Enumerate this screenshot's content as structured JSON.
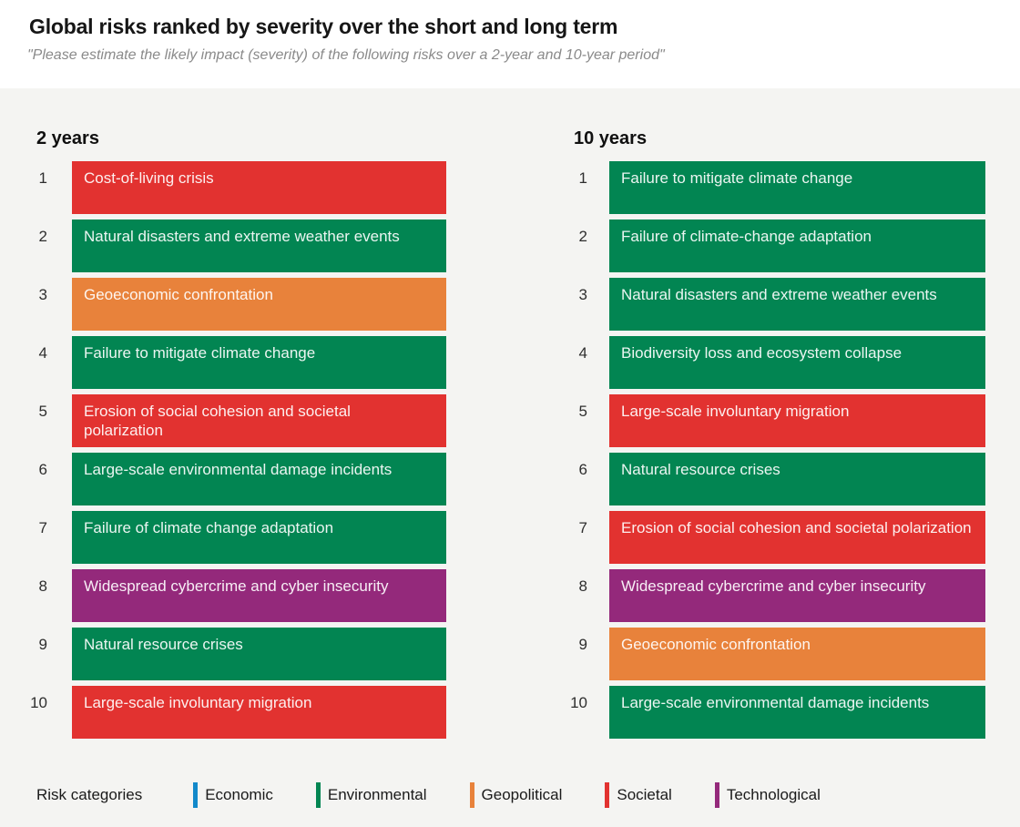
{
  "header": {
    "title": "Global risks ranked by severity over the short and long term",
    "subtitle": "\"Please estimate the likely impact (severity) of the following risks over a 2-year and 10-year period\""
  },
  "categories": {
    "economic": "#1289CA",
    "environmental": "#028552",
    "geopolitical": "#E8823B",
    "societal": "#E23230",
    "technological": "#94297B"
  },
  "columns": [
    {
      "label": "2 years",
      "items": [
        {
          "rank": "1",
          "label": "Cost-of-living crisis",
          "category": "societal"
        },
        {
          "rank": "2",
          "label": "Natural disasters and extreme weather events",
          "category": "environmental"
        },
        {
          "rank": "3",
          "label": "Geoeconomic confrontation",
          "category": "geopolitical"
        },
        {
          "rank": "4",
          "label": "Failure to mitigate climate change",
          "category": "environmental"
        },
        {
          "rank": "5",
          "label": "Erosion of social cohesion and societal polarization",
          "category": "societal"
        },
        {
          "rank": "6",
          "label": "Large-scale environmental damage incidents",
          "category": "environmental"
        },
        {
          "rank": "7",
          "label": "Failure of climate change adaptation",
          "category": "environmental"
        },
        {
          "rank": "8",
          "label": "Widespread cybercrime and cyber insecurity",
          "category": "technological"
        },
        {
          "rank": "9",
          "label": "Natural resource crises",
          "category": "environmental"
        },
        {
          "rank": "10",
          "label": "Large-scale involuntary migration",
          "category": "societal"
        }
      ]
    },
    {
      "label": "10 years",
      "items": [
        {
          "rank": "1",
          "label": "Failure to mitigate climate change",
          "category": "environmental"
        },
        {
          "rank": "2",
          "label": "Failure of climate-change adaptation",
          "category": "environmental"
        },
        {
          "rank": "3",
          "label": "Natural disasters and extreme weather events",
          "category": "environmental"
        },
        {
          "rank": "4",
          "label": "Biodiversity loss and ecosystem collapse",
          "category": "environmental"
        },
        {
          "rank": "5",
          "label": "Large-scale involuntary migration",
          "category": "societal"
        },
        {
          "rank": "6",
          "label": "Natural resource crises",
          "category": "environmental"
        },
        {
          "rank": "7",
          "label": "Erosion of social cohesion and societal polarization",
          "category": "societal"
        },
        {
          "rank": "8",
          "label": "Widespread cybercrime and cyber insecurity",
          "category": "technological"
        },
        {
          "rank": "9",
          "label": "Geoeconomic confrontation",
          "category": "geopolitical"
        },
        {
          "rank": "10",
          "label": "Large-scale environmental damage incidents",
          "category": "environmental"
        }
      ]
    }
  ],
  "legend": {
    "title": "Risk categories",
    "items": [
      {
        "label": "Economic",
        "color": "#1289CA"
      },
      {
        "label": "Environmental",
        "color": "#028552"
      },
      {
        "label": "Geopolitical",
        "color": "#E8823B"
      },
      {
        "label": "Societal",
        "color": "#E23230"
      },
      {
        "label": "Technological",
        "color": "#94297B"
      }
    ]
  },
  "chart_data": {
    "type": "table",
    "title": "Global risks ranked by severity over the short and long term",
    "subtitle": "\"Please estimate the likely impact (severity) of the following risks over a 2-year and 10-year period\"",
    "columns": [
      "2 years",
      "10 years"
    ],
    "rankings": {
      "2 years": [
        {
          "rank": 1,
          "risk": "Cost-of-living crisis",
          "category": "Societal"
        },
        {
          "rank": 2,
          "risk": "Natural disasters and extreme weather events",
          "category": "Environmental"
        },
        {
          "rank": 3,
          "risk": "Geoeconomic confrontation",
          "category": "Geopolitical"
        },
        {
          "rank": 4,
          "risk": "Failure to mitigate climate change",
          "category": "Environmental"
        },
        {
          "rank": 5,
          "risk": "Erosion of social cohesion and societal polarization",
          "category": "Societal"
        },
        {
          "rank": 6,
          "risk": "Large-scale environmental damage incidents",
          "category": "Environmental"
        },
        {
          "rank": 7,
          "risk": "Failure of climate change adaptation",
          "category": "Environmental"
        },
        {
          "rank": 8,
          "risk": "Widespread cybercrime and cyber insecurity",
          "category": "Technological"
        },
        {
          "rank": 9,
          "risk": "Natural resource crises",
          "category": "Environmental"
        },
        {
          "rank": 10,
          "risk": "Large-scale involuntary migration",
          "category": "Societal"
        }
      ],
      "10 years": [
        {
          "rank": 1,
          "risk": "Failure to mitigate climate change",
          "category": "Environmental"
        },
        {
          "rank": 2,
          "risk": "Failure of climate-change adaptation",
          "category": "Environmental"
        },
        {
          "rank": 3,
          "risk": "Natural disasters and extreme weather events",
          "category": "Environmental"
        },
        {
          "rank": 4,
          "risk": "Biodiversity loss and ecosystem collapse",
          "category": "Environmental"
        },
        {
          "rank": 5,
          "risk": "Large-scale involuntary migration",
          "category": "Societal"
        },
        {
          "rank": 6,
          "risk": "Natural resource crises",
          "category": "Environmental"
        },
        {
          "rank": 7,
          "risk": "Erosion of social cohesion and societal polarization",
          "category": "Societal"
        },
        {
          "rank": 8,
          "risk": "Widespread cybercrime and cyber insecurity",
          "category": "Technological"
        },
        {
          "rank": 9,
          "risk": "Geoeconomic confrontation",
          "category": "Geopolitical"
        },
        {
          "rank": 10,
          "risk": "Large-scale environmental damage incidents",
          "category": "Environmental"
        }
      ]
    },
    "legend": {
      "title": "Risk categories",
      "categories": [
        "Economic",
        "Environmental",
        "Geopolitical",
        "Societal",
        "Technological"
      ],
      "colors": [
        "#1289CA",
        "#028552",
        "#E8823B",
        "#E23230",
        "#94297B"
      ]
    },
    "layout_hints": {
      "legend_position": "bottom",
      "grid": false
    }
  }
}
